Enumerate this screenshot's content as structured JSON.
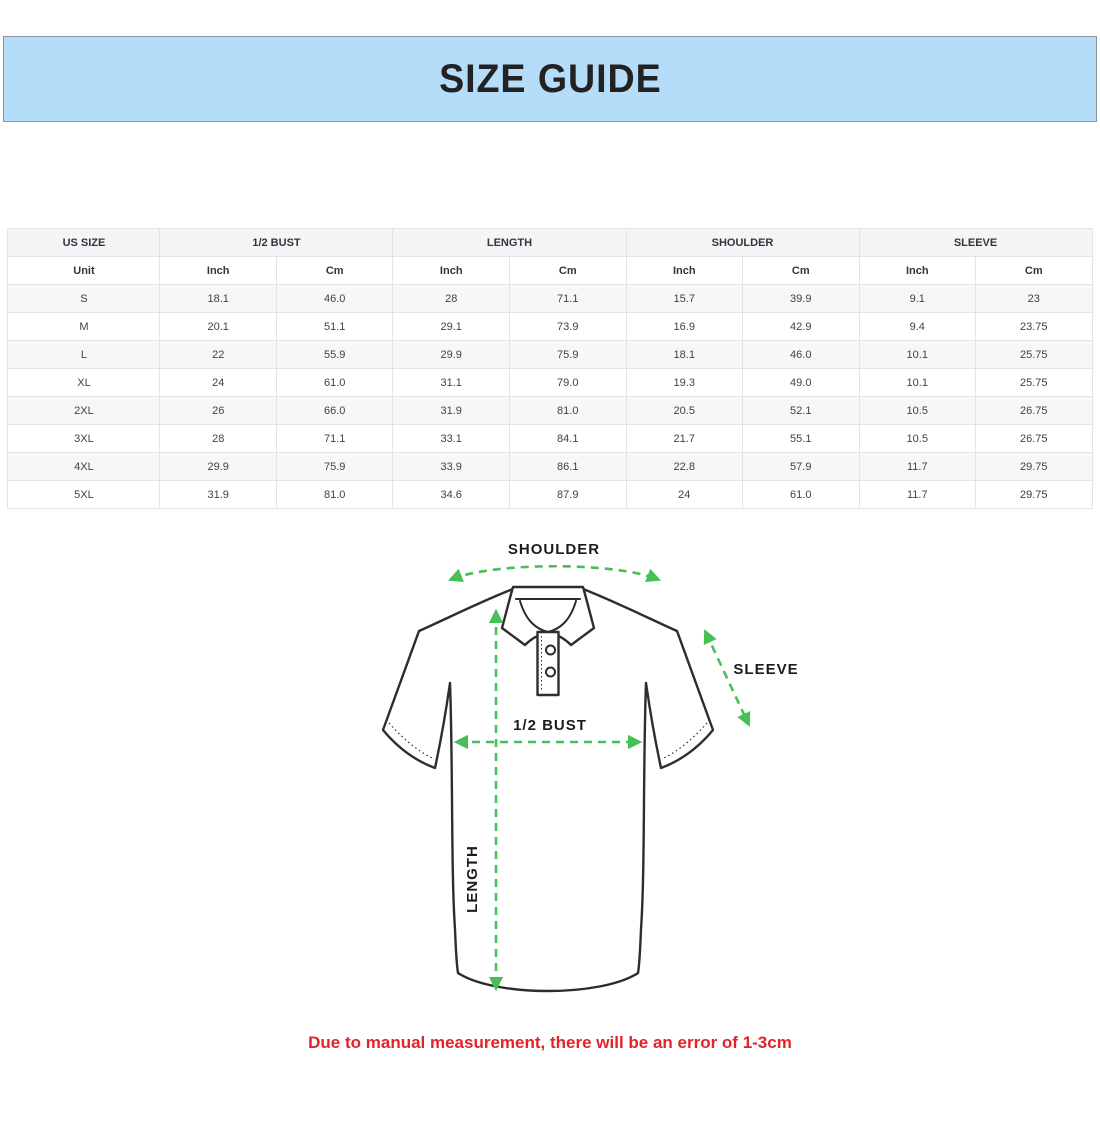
{
  "banner": {
    "title": "SIZE GUIDE",
    "bg_color": "#b5dcf8",
    "border_color": "#8c939b"
  },
  "size_table": {
    "group_headers": [
      {
        "label": "US SIZE"
      },
      {
        "label": "1/2 BUST"
      },
      {
        "label": "LENGTH"
      },
      {
        "label": "SHOULDER"
      },
      {
        "label": "SLEEVE"
      }
    ],
    "unit_headers": [
      "Unit",
      "Inch",
      "Cm",
      "Inch",
      "Cm",
      "Inch",
      "Cm",
      "Inch",
      "Cm"
    ],
    "rows": [
      [
        "S",
        "18.1",
        "46.0",
        "28",
        "71.1",
        "15.7",
        "39.9",
        "9.1",
        "23"
      ],
      [
        "M",
        "20.1",
        "51.1",
        "29.1",
        "73.9",
        "16.9",
        "42.9",
        "9.4",
        "23.75"
      ],
      [
        "L",
        "22",
        "55.9",
        "29.9",
        "75.9",
        "18.1",
        "46.0",
        "10.1",
        "25.75"
      ],
      [
        "XL",
        "24",
        "61.0",
        "31.1",
        "79.0",
        "19.3",
        "49.0",
        "10.1",
        "25.75"
      ],
      [
        "2XL",
        "26",
        "66.0",
        "31.9",
        "81.0",
        "20.5",
        "52.1",
        "10.5",
        "26.75"
      ],
      [
        "3XL",
        "28",
        "71.1",
        "33.1",
        "84.1",
        "21.7",
        "55.1",
        "10.5",
        "26.75"
      ],
      [
        "4XL",
        "29.9",
        "75.9",
        "33.9",
        "86.1",
        "22.8",
        "57.9",
        "11.7",
        "29.75"
      ],
      [
        "5XL",
        "31.9",
        "81.0",
        "34.6",
        "87.9",
        "24",
        "61.0",
        "11.7",
        "29.75"
      ]
    ]
  },
  "diagram": {
    "shoulder_label": "SHOULDER",
    "sleeve_label": "SLEEVE",
    "bust_label": "1/2 BUST",
    "length_label": "LENGTH",
    "arrow_color": "#47bf57",
    "outline_color": "#2d2d2d"
  },
  "disclaimer": {
    "text": "Due to manual measurement, there will be an error of 1-3cm",
    "color": "#e32229"
  }
}
